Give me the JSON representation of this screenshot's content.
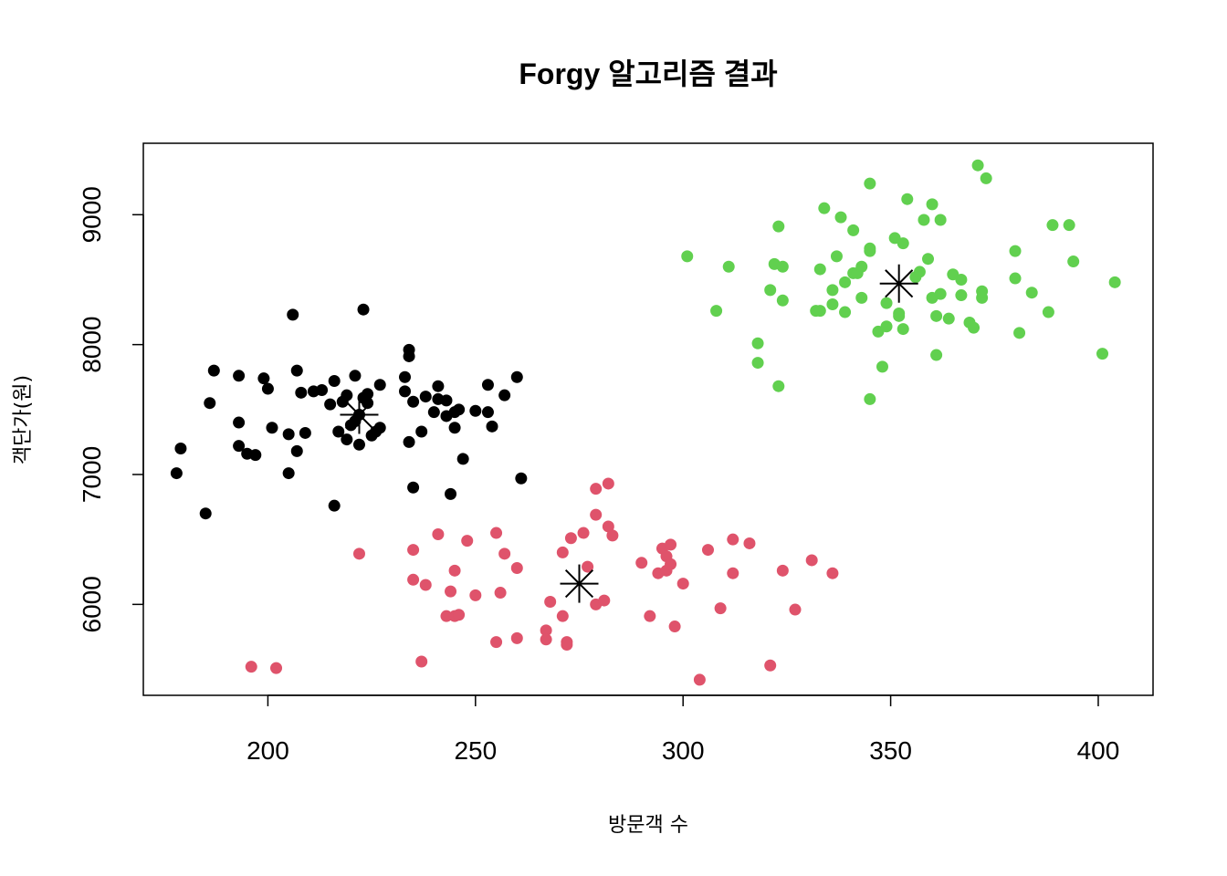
{
  "chart_data": {
    "type": "scatter",
    "title": "Forgy 알고리즘 결과",
    "xlabel": "방문객 수",
    "ylabel": "객단가(원)",
    "xlim": [
      170,
      1415
    ],
    "ylim": [
      5300,
      9550
    ],
    "xticks": [
      200,
      250,
      300,
      350,
      400
    ],
    "yticks": [
      6000,
      7000,
      8000,
      9000
    ],
    "xtick_labels": [
      "200",
      "250",
      "300",
      "350",
      "400"
    ],
    "ytick_labels": [
      "6000",
      "7000",
      "8000",
      "9000"
    ],
    "grid": false,
    "legend": "none",
    "series": [
      {
        "color": "#000000",
        "points": [
          [
            178,
            7010
          ],
          [
            179,
            7200
          ],
          [
            185,
            6700
          ],
          [
            186,
            7550
          ],
          [
            187,
            7800
          ],
          [
            193,
            7400
          ],
          [
            193,
            7220
          ],
          [
            193,
            7760
          ],
          [
            195,
            7160
          ],
          [
            197,
            7150
          ],
          [
            199,
            7740
          ],
          [
            200,
            7660
          ],
          [
            201,
            7360
          ],
          [
            205,
            7010
          ],
          [
            205,
            7310
          ],
          [
            206,
            8230
          ],
          [
            207,
            7180
          ],
          [
            207,
            7800
          ],
          [
            208,
            7630
          ],
          [
            209,
            7320
          ],
          [
            211,
            7640
          ],
          [
            213,
            7650
          ],
          [
            215,
            7540
          ],
          [
            216,
            6760
          ],
          [
            216,
            7720
          ],
          [
            217,
            7330
          ],
          [
            218,
            7560
          ],
          [
            219,
            7610
          ],
          [
            219,
            7270
          ],
          [
            220,
            7380
          ],
          [
            221,
            7410
          ],
          [
            221,
            7760
          ],
          [
            222,
            7230
          ],
          [
            222,
            7460
          ],
          [
            223,
            7590
          ],
          [
            223,
            8270
          ],
          [
            224,
            7550
          ],
          [
            224,
            7620
          ],
          [
            225,
            7300
          ],
          [
            226,
            7330
          ],
          [
            227,
            7360
          ],
          [
            227,
            7690
          ],
          [
            233,
            7640
          ],
          [
            233,
            7750
          ],
          [
            234,
            7250
          ],
          [
            234,
            7910
          ],
          [
            234,
            7960
          ],
          [
            235,
            6900
          ],
          [
            235,
            7560
          ],
          [
            237,
            7330
          ],
          [
            238,
            7600
          ],
          [
            240,
            7480
          ],
          [
            241,
            7680
          ],
          [
            241,
            7580
          ],
          [
            243,
            7570
          ],
          [
            243,
            7450
          ],
          [
            244,
            6850
          ],
          [
            245,
            7360
          ],
          [
            245,
            7480
          ],
          [
            246,
            7500
          ],
          [
            247,
            7120
          ],
          [
            250,
            7490
          ],
          [
            253,
            7480
          ],
          [
            253,
            7690
          ],
          [
            254,
            7370
          ],
          [
            257,
            7610
          ],
          [
            260,
            7750
          ],
          [
            261,
            6970
          ]
        ]
      },
      {
        "color": "#df536b",
        "points": [
          [
            196,
            5520
          ],
          [
            202,
            5510
          ],
          [
            222,
            6390
          ],
          [
            235,
            6420
          ],
          [
            235,
            6190
          ],
          [
            237,
            5560
          ],
          [
            238,
            6150
          ],
          [
            241,
            6540
          ],
          [
            243,
            5910
          ],
          [
            244,
            6100
          ],
          [
            245,
            5910
          ],
          [
            245,
            6260
          ],
          [
            246,
            5920
          ],
          [
            248,
            6490
          ],
          [
            250,
            6070
          ],
          [
            255,
            5710
          ],
          [
            255,
            6550
          ],
          [
            256,
            6090
          ],
          [
            257,
            6390
          ],
          [
            260,
            5740
          ],
          [
            260,
            6280
          ],
          [
            267,
            5800
          ],
          [
            267,
            5730
          ],
          [
            268,
            6020
          ],
          [
            271,
            5910
          ],
          [
            271,
            6400
          ],
          [
            272,
            5710
          ],
          [
            272,
            5690
          ],
          [
            273,
            6510
          ],
          [
            276,
            6550
          ],
          [
            277,
            6290
          ],
          [
            279,
            6690
          ],
          [
            279,
            6890
          ],
          [
            279,
            6000
          ],
          [
            281,
            6030
          ],
          [
            282,
            6600
          ],
          [
            282,
            6930
          ],
          [
            283,
            6530
          ],
          [
            290,
            6320
          ],
          [
            292,
            5910
          ],
          [
            294,
            6240
          ],
          [
            295,
            6430
          ],
          [
            296,
            6370
          ],
          [
            296,
            6260
          ],
          [
            297,
            6310
          ],
          [
            297,
            6460
          ],
          [
            298,
            5830
          ],
          [
            300,
            6160
          ],
          [
            304,
            5420
          ],
          [
            306,
            6420
          ],
          [
            309,
            5970
          ],
          [
            312,
            6500
          ],
          [
            312,
            6240
          ],
          [
            316,
            6470
          ],
          [
            321,
            5530
          ],
          [
            324,
            6260
          ],
          [
            327,
            5960
          ],
          [
            331,
            6340
          ],
          [
            336,
            6240
          ]
        ]
      },
      {
        "color": "#61d04f",
        "points": [
          [
            301,
            8680
          ],
          [
            308,
            8260
          ],
          [
            311,
            8600
          ],
          [
            318,
            8010
          ],
          [
            318,
            7860
          ],
          [
            321,
            8420
          ],
          [
            322,
            8620
          ],
          [
            323,
            8910
          ],
          [
            323,
            7680
          ],
          [
            324,
            8600
          ],
          [
            324,
            8340
          ],
          [
            332,
            8260
          ],
          [
            333,
            8260
          ],
          [
            333,
            8580
          ],
          [
            334,
            9050
          ],
          [
            336,
            8420
          ],
          [
            336,
            8310
          ],
          [
            337,
            8680
          ],
          [
            338,
            8980
          ],
          [
            339,
            8250
          ],
          [
            339,
            8480
          ],
          [
            341,
            8880
          ],
          [
            341,
            8550
          ],
          [
            342,
            8550
          ],
          [
            343,
            8360
          ],
          [
            343,
            8600
          ],
          [
            345,
            9240
          ],
          [
            345,
            8740
          ],
          [
            345,
            8720
          ],
          [
            345,
            7580
          ],
          [
            347,
            8100
          ],
          [
            348,
            7830
          ],
          [
            349,
            8320
          ],
          [
            349,
            8140
          ],
          [
            351,
            8820
          ],
          [
            352,
            8240
          ],
          [
            352,
            8220
          ],
          [
            353,
            8120
          ],
          [
            353,
            8780
          ],
          [
            354,
            9120
          ],
          [
            356,
            8520
          ],
          [
            357,
            8560
          ],
          [
            358,
            8960
          ],
          [
            359,
            8660
          ],
          [
            360,
            9080
          ],
          [
            360,
            8360
          ],
          [
            361,
            8220
          ],
          [
            361,
            7920
          ],
          [
            362,
            8390
          ],
          [
            362,
            8960
          ],
          [
            364,
            8200
          ],
          [
            365,
            8540
          ],
          [
            367,
            8500
          ],
          [
            367,
            8380
          ],
          [
            369,
            8170
          ],
          [
            370,
            8130
          ],
          [
            371,
            9380
          ],
          [
            372,
            8360
          ],
          [
            372,
            8410
          ],
          [
            373,
            9280
          ],
          [
            380,
            8720
          ],
          [
            380,
            8510
          ],
          [
            381,
            8090
          ],
          [
            384,
            8400
          ],
          [
            388,
            8250
          ],
          [
            389,
            8920
          ],
          [
            393,
            8920
          ],
          [
            394,
            8640
          ],
          [
            401,
            7930
          ],
          [
            404,
            8480
          ]
        ]
      },
      {
        "color": "#000000",
        "marker": "asterisk",
        "points": [
          [
            222,
            7460
          ],
          [
            275,
            6160
          ],
          [
            352,
            8470
          ]
        ]
      }
    ]
  }
}
